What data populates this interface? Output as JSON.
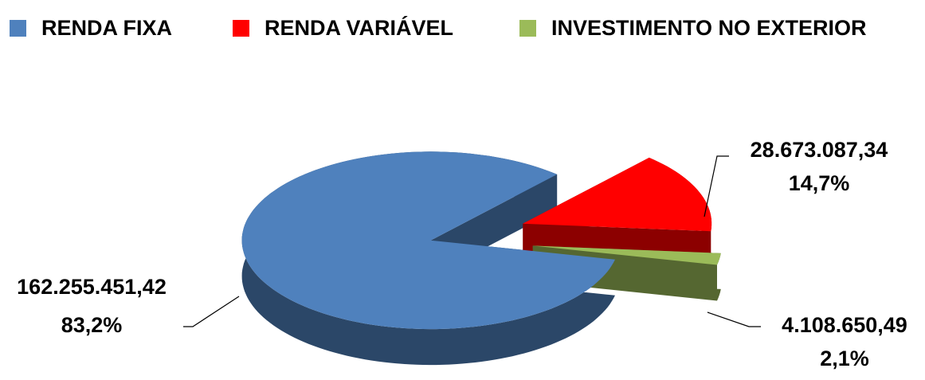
{
  "chart_data": {
    "type": "pie",
    "categories": [
      "RENDA FIXA",
      "RENDA VARIÁVEL",
      "INVESTIMENTO NO EXTERIOR"
    ],
    "values": [
      162255451.42,
      28673087.34,
      4108650.49
    ],
    "value_labels": [
      "162.255.451,42",
      "28.673.087,34",
      "4.108.650,49"
    ],
    "percents": [
      83.2,
      14.7,
      2.1
    ],
    "percent_labels": [
      "83,2%",
      "14,7%",
      "2,1%"
    ],
    "colors": [
      "#4f81bd",
      "#ff0000",
      "#9bbb59"
    ],
    "legend": "top"
  }
}
